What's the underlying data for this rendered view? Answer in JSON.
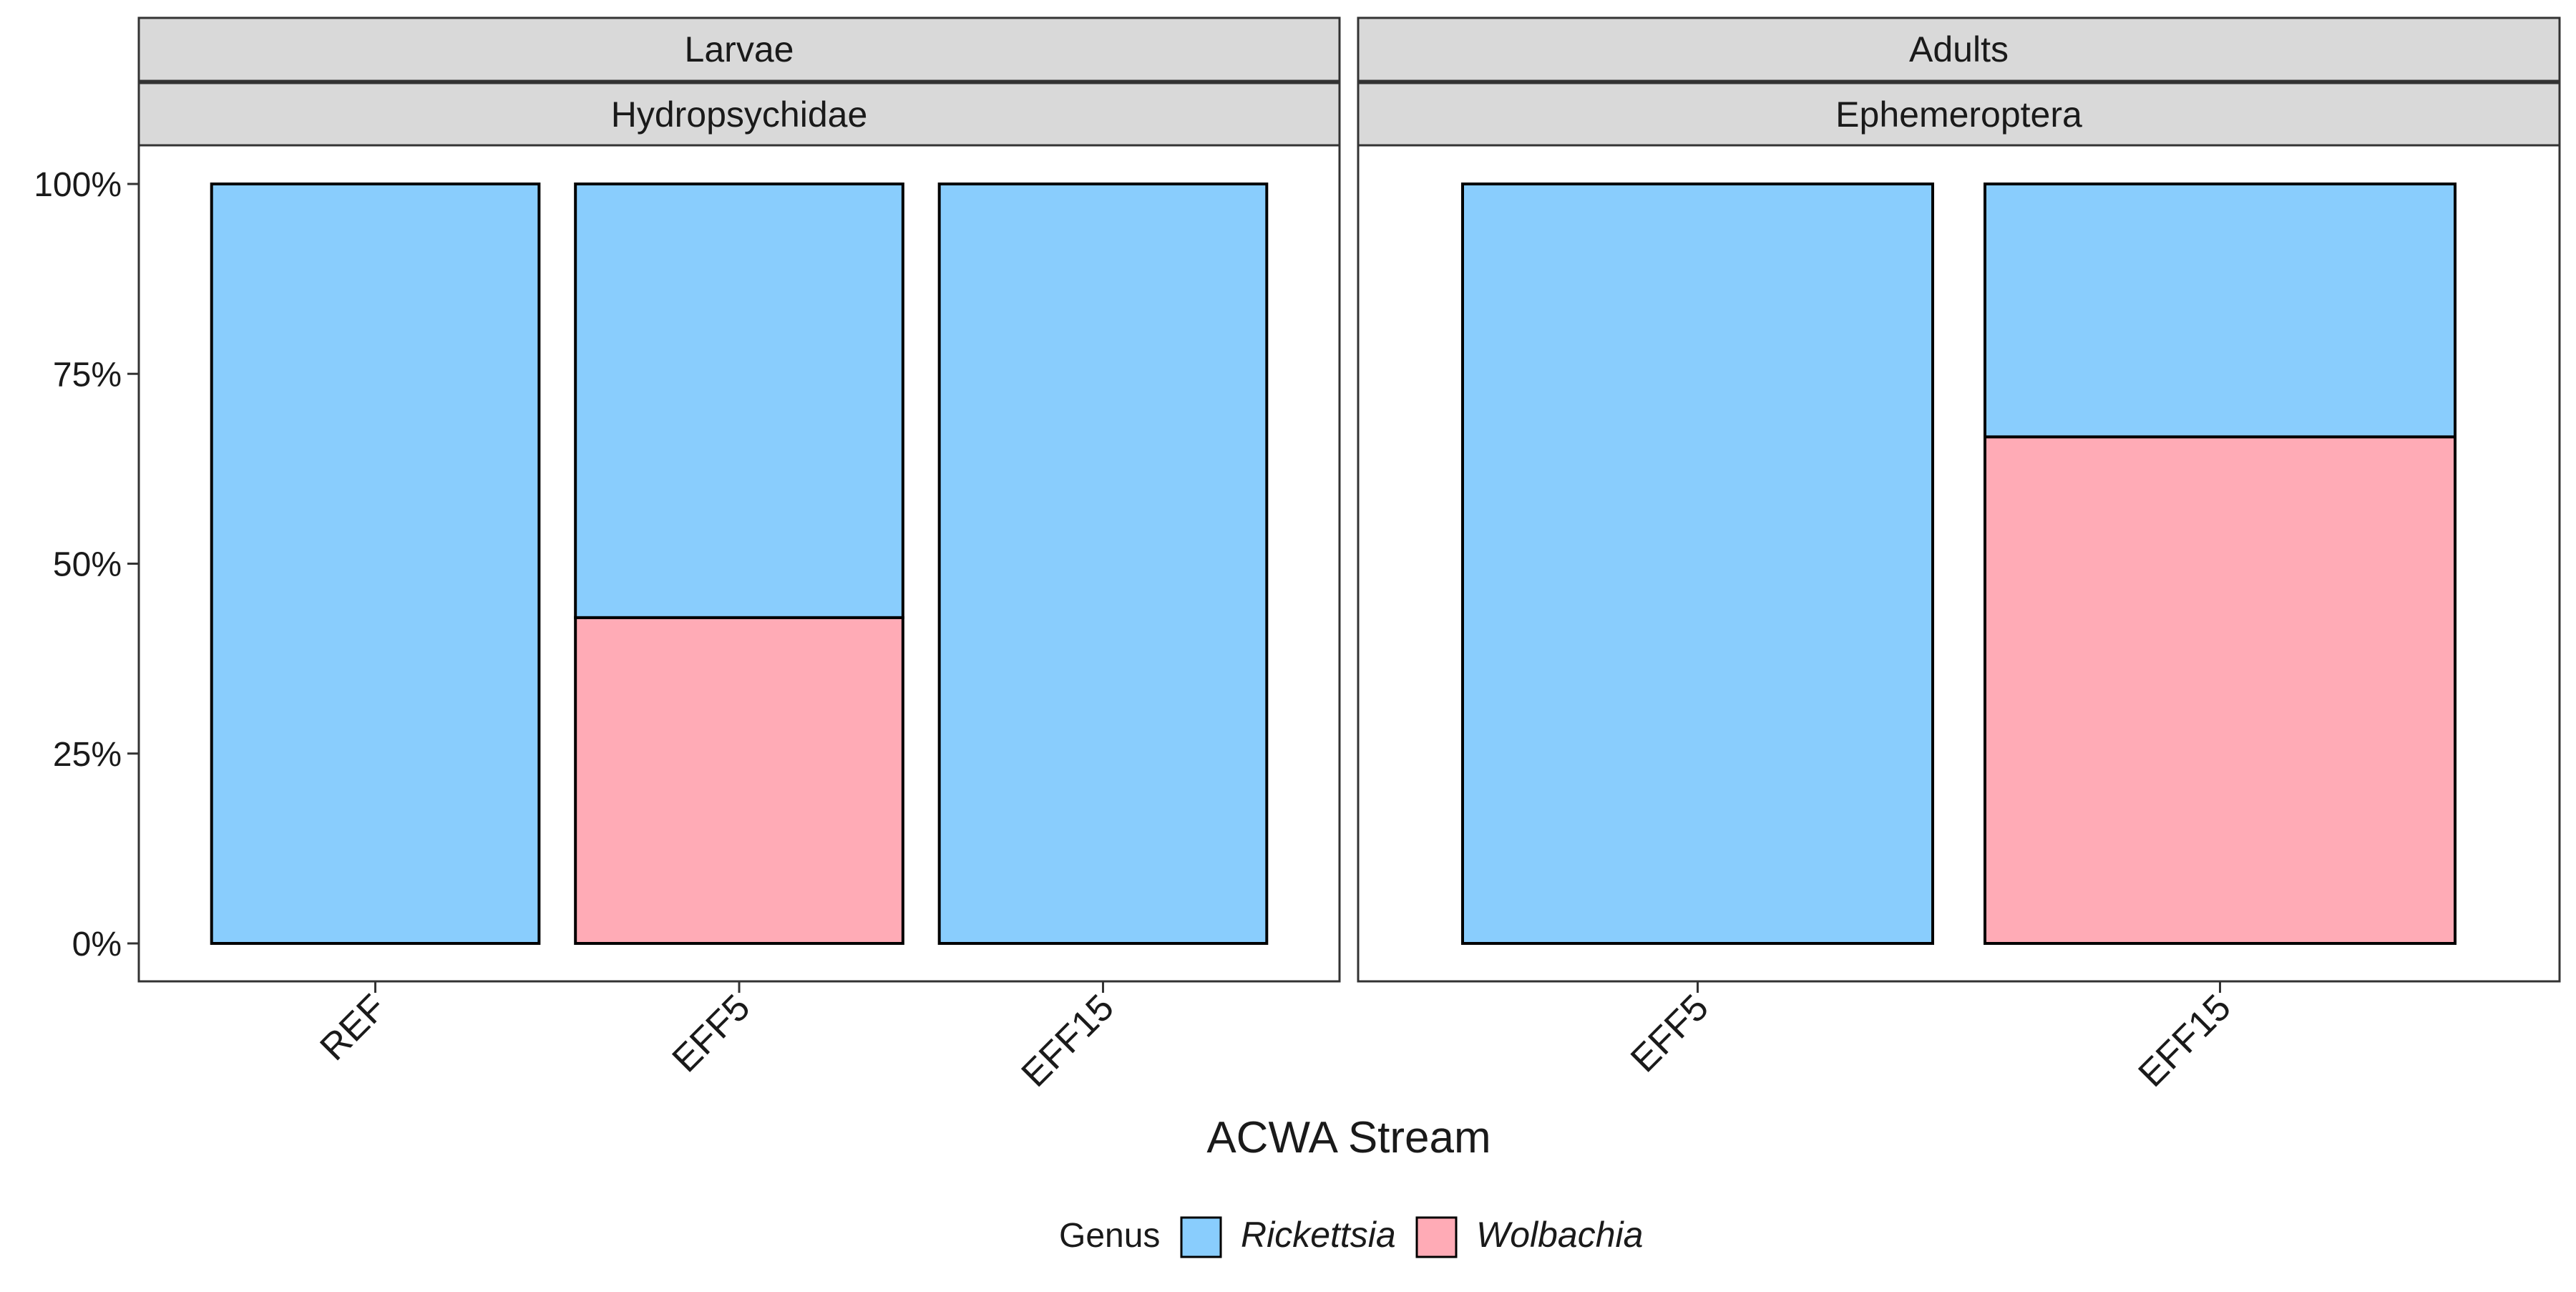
{
  "chart_data": {
    "type": "bar",
    "stacked": true,
    "xlabel": "ACWA Stream",
    "ylabel": "",
    "ylim": [
      0,
      1
    ],
    "y_ticks": [
      {
        "value": 0,
        "label": "0%"
      },
      {
        "value": 0.25,
        "label": "25%"
      },
      {
        "value": 0.5,
        "label": "50%"
      },
      {
        "value": 0.75,
        "label": "75%"
      },
      {
        "value": 1,
        "label": "100%"
      }
    ],
    "grid": false,
    "legend": {
      "position": "bottom",
      "title": "Genus",
      "entries": [
        {
          "label": "Rickettsia",
          "color": "#89CDFD",
          "italic": true
        },
        {
          "label": "Wolbachia",
          "color": "#FFABB6",
          "italic": true
        }
      ]
    },
    "panels": [
      {
        "strip_top": "Larvae",
        "strip_bottom": "Hydropsychidae",
        "categories": [
          "REF",
          "EFF5",
          "EFF15"
        ],
        "series": [
          {
            "name": "Wolbachia",
            "values": [
              0,
              0.429,
              0
            ]
          },
          {
            "name": "Rickettsia",
            "values": [
              1,
              0.571,
              1
            ]
          }
        ]
      },
      {
        "strip_top": "Adults",
        "strip_bottom": "Ephemeroptera",
        "categories": [
          "EFF5",
          "EFF15"
        ],
        "series": [
          {
            "name": "Wolbachia",
            "values": [
              0,
              0.667
            ]
          },
          {
            "name": "Rickettsia",
            "values": [
              1,
              0.333
            ]
          }
        ]
      }
    ]
  },
  "colors": {
    "Rickettsia": "#89CDFD",
    "Wolbachia": "#FFABB6",
    "strip_fill": "#D9D9D9",
    "frame": "#333333"
  }
}
